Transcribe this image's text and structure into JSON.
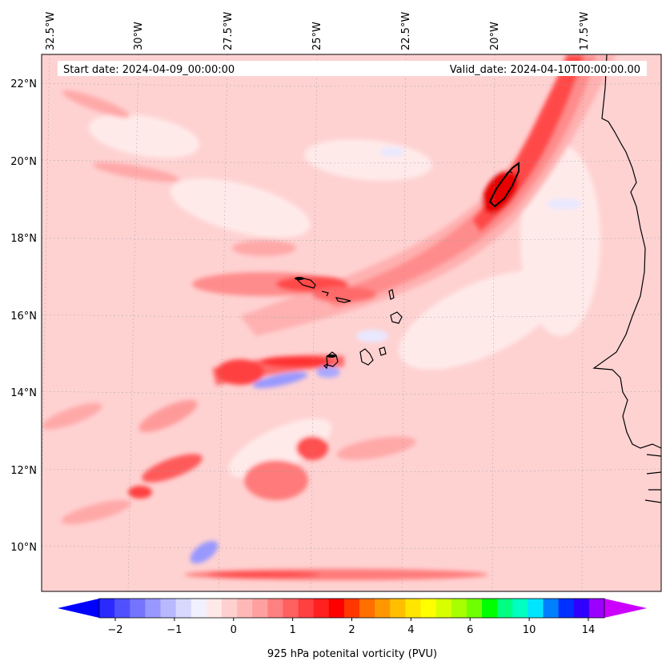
{
  "map": {
    "start_date_text": "Start date: 2024-04-09_00:00:00",
    "valid_date_text": "Valid_date: 2024-04-10T00:00:00.00",
    "lon_labels": [
      "32.5°W",
      "30°W",
      "27.5°W",
      "25°W",
      "22.5°W",
      "20°W",
      "17.5°W"
    ],
    "lat_labels": [
      "22°N",
      "20°N",
      "18°N",
      "16°N",
      "14°N",
      "12°N",
      "10°N"
    ],
    "gridlines": true
  },
  "colorbar": {
    "label": "925 hPa potenital vorticity (PVU)",
    "tick_labels": [
      "−2",
      "−1",
      "0",
      "1",
      "2",
      "4",
      "6",
      "10",
      "14"
    ],
    "colors": [
      "#0000ff",
      "#2a2aff",
      "#5050ff",
      "#7474ff",
      "#9898ff",
      "#b8b8ff",
      "#d8d8ff",
      "#f0f0ff",
      "#ffe8e8",
      "#ffd0d0",
      "#ffb8b8",
      "#ffa0a0",
      "#ff8080",
      "#ff6060",
      "#ff4040",
      "#ff2020",
      "#ff0000",
      "#ff3800",
      "#ff7000",
      "#ff9800",
      "#ffbf00",
      "#ffe500",
      "#ffff00",
      "#d8ff00",
      "#a8ff00",
      "#70ff00",
      "#00ff00",
      "#00ff80",
      "#00ffc0",
      "#00e5ff",
      "#0080ff",
      "#0030ff",
      "#3000ff",
      "#9a00ff",
      "#cc00ff"
    ],
    "extend": "both"
  }
}
